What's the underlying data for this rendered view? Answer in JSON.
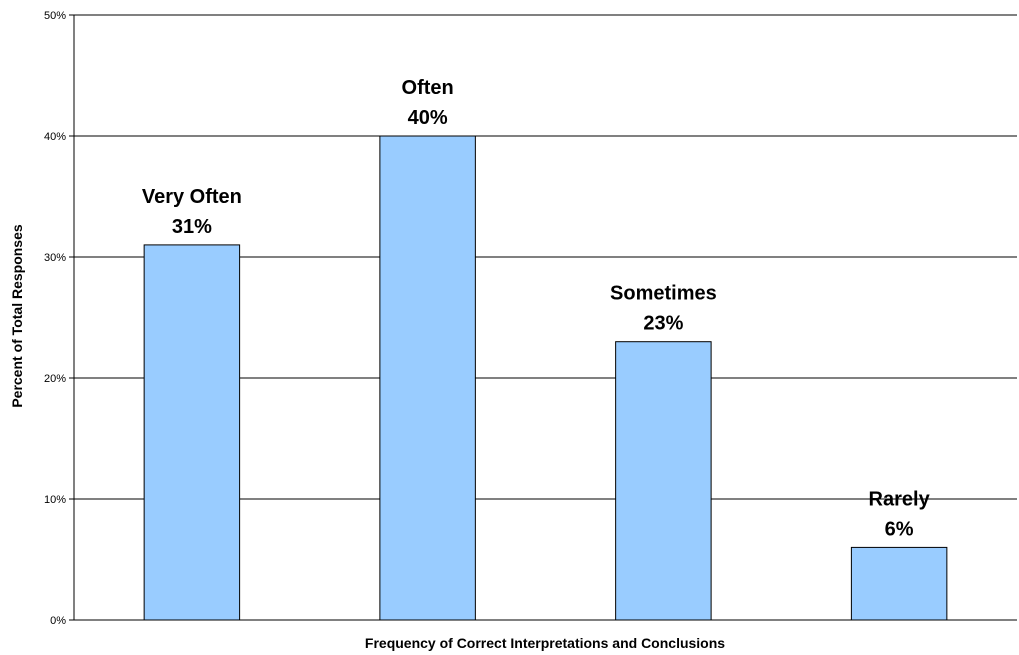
{
  "chart_data": {
    "type": "bar",
    "categories": [
      "Very Often",
      "Often",
      "Sometimes",
      "Rarely"
    ],
    "values": [
      31,
      40,
      23,
      6
    ],
    "value_labels": [
      "31%",
      "40%",
      "23%",
      "6%"
    ],
    "title": "",
    "xlabel": "Frequency of Correct Interpretations and Conclusions",
    "ylabel": "Percent of Total Responses",
    "ylim": [
      0,
      50
    ],
    "yticks": [
      0,
      10,
      20,
      30,
      40,
      50
    ],
    "ytick_labels": [
      "0%",
      "10%",
      "20%",
      "30%",
      "40%",
      "50%"
    ],
    "grid": true,
    "legend": "none",
    "bar_color": "#99ccff",
    "bar_edge_color": "#000000"
  }
}
